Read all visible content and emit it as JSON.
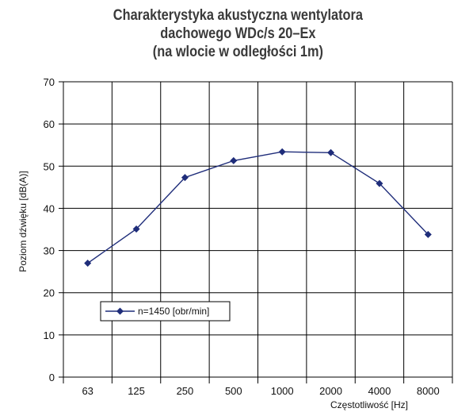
{
  "chart_data": {
    "type": "line",
    "title": [
      "Charakterystyka akustyczna wentylatora",
      "dachowego WDc/s 20–Ex",
      "(na wlocie w odległości 1m)"
    ],
    "xlabel": "Częstotliwość [Hz]",
    "ylabel": "Poziom dźwięku [dB(A)]",
    "categories": [
      "63",
      "125",
      "250",
      "500",
      "1000",
      "2000",
      "4000",
      "8000"
    ],
    "series": [
      {
        "name": "n=1450 [obr/min]",
        "values": [
          27,
          35.1,
          47.3,
          51.3,
          53.4,
          53.2,
          45.9,
          33.8
        ]
      }
    ],
    "ylim": [
      0,
      70
    ],
    "yticks": [
      0,
      10,
      20,
      30,
      40,
      50,
      60,
      70
    ],
    "grid": true,
    "legend_position": "lower-left",
    "colors": {
      "series": "#1f2d7a",
      "grid": "#000000"
    }
  }
}
